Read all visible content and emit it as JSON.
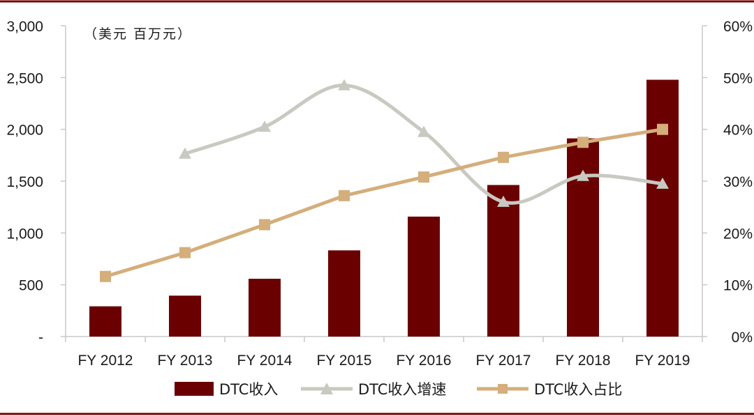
{
  "chart_data": {
    "type": "bar",
    "unit_label": "（美元 百万元）",
    "categories": [
      "FY 2012",
      "FY 2013",
      "FY 2014",
      "FY 2015",
      "FY 2016",
      "FY 2017",
      "FY 2018",
      "FY 2019"
    ],
    "left_axis": {
      "min": 0,
      "max": 3000,
      "step": 500,
      "tick_labels": [
        "-",
        "500",
        "1,000",
        "1,500",
        "2,000",
        "2,500",
        "3,000"
      ]
    },
    "right_axis": {
      "min": 0,
      "max": 60,
      "step": 10,
      "tick_labels": [
        "0%",
        "10%",
        "20%",
        "30%",
        "40%",
        "50%",
        "60%"
      ]
    },
    "series": [
      {
        "name": "DTC收入",
        "type": "bar",
        "axis": "left",
        "color": "#6b0000",
        "values": [
          292,
          395,
          558,
          832,
          1158,
          1463,
          1913,
          2479
        ]
      },
      {
        "name": "DTC收入增速",
        "type": "line",
        "axis": "right",
        "color": "#c8c9c1",
        "marker": "triangle",
        "smooth": true,
        "values": [
          null,
          35.3,
          40.5,
          48.5,
          39.5,
          26.0,
          31.0,
          29.5
        ]
      },
      {
        "name": "DTC收入占比",
        "type": "line",
        "axis": "right",
        "color": "#d4ae7b",
        "marker": "square",
        "smooth": false,
        "values": [
          11.6,
          16.2,
          21.6,
          27.2,
          30.8,
          34.6,
          37.5,
          40.0
        ]
      }
    ],
    "legend": [
      "DTC收入",
      "DTC收入增速",
      "DTC收入占比"
    ],
    "legend_position": "bottom",
    "frame_color": "#7a0000"
  }
}
